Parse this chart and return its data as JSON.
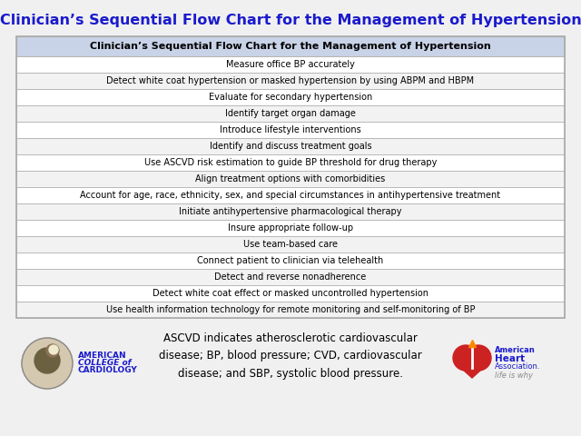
{
  "title": "Clinician’s Sequential Flow Chart for the Management of Hypertension",
  "title_color": "#1A1ACD",
  "title_fontsize": 11.5,
  "header_row": "Clinician’s Sequential Flow Chart for the Management of Hypertension",
  "header_bg": "#C9D3E8",
  "rows": [
    "Measure office BP accurately",
    "Detect white coat hypertension or masked hypertension by using ABPM and HBPM",
    "Evaluate for secondary hypertension",
    "Identify target organ damage",
    "Introduce lifestyle interventions",
    "Identify and discuss treatment goals",
    "Use ASCVD risk estimation to guide BP threshold for drug therapy",
    "Align treatment options with comorbidities",
    "Account for age, race, ethnicity, sex, and special circumstances in antihypertensive treatment",
    "Initiate antihypertensive pharmacological therapy",
    "Insure appropriate follow-up",
    "Use team-based care",
    "Connect patient to clinician via telehealth",
    "Detect and reverse nonadherence",
    "Detect white coat effect or masked uncontrolled hypertension",
    "Use health information technology for remote monitoring and self-monitoring of BP"
  ],
  "row_bg_even": "#FFFFFF",
  "row_bg_odd": "#F2F2F2",
  "border_color": "#AAAAAA",
  "text_color": "#000000",
  "row_fontsize": 7.0,
  "header_fontsize": 8.0,
  "footer_text": "ASCVD indicates atherosclerotic cardiovascular\ndisease; BP, blood pressure; CVD, cardiovascular\ndisease; and SBP, systolic blood pressure.",
  "footer_fontsize": 8.5,
  "bg_color": "#F0F0F0",
  "acc_text_line1": "AMERICAN",
  "acc_text_line2": "COLLEGE of",
  "acc_text_line3": "CARDIOLOGY",
  "aha_line1": "American",
  "aha_line2": "Heart",
  "aha_line3": "Association.",
  "aha_line4": "life is why",
  "aha_red": "#CC2222",
  "aha_blue": "#1A1ACD",
  "aha_gray": "#888888"
}
